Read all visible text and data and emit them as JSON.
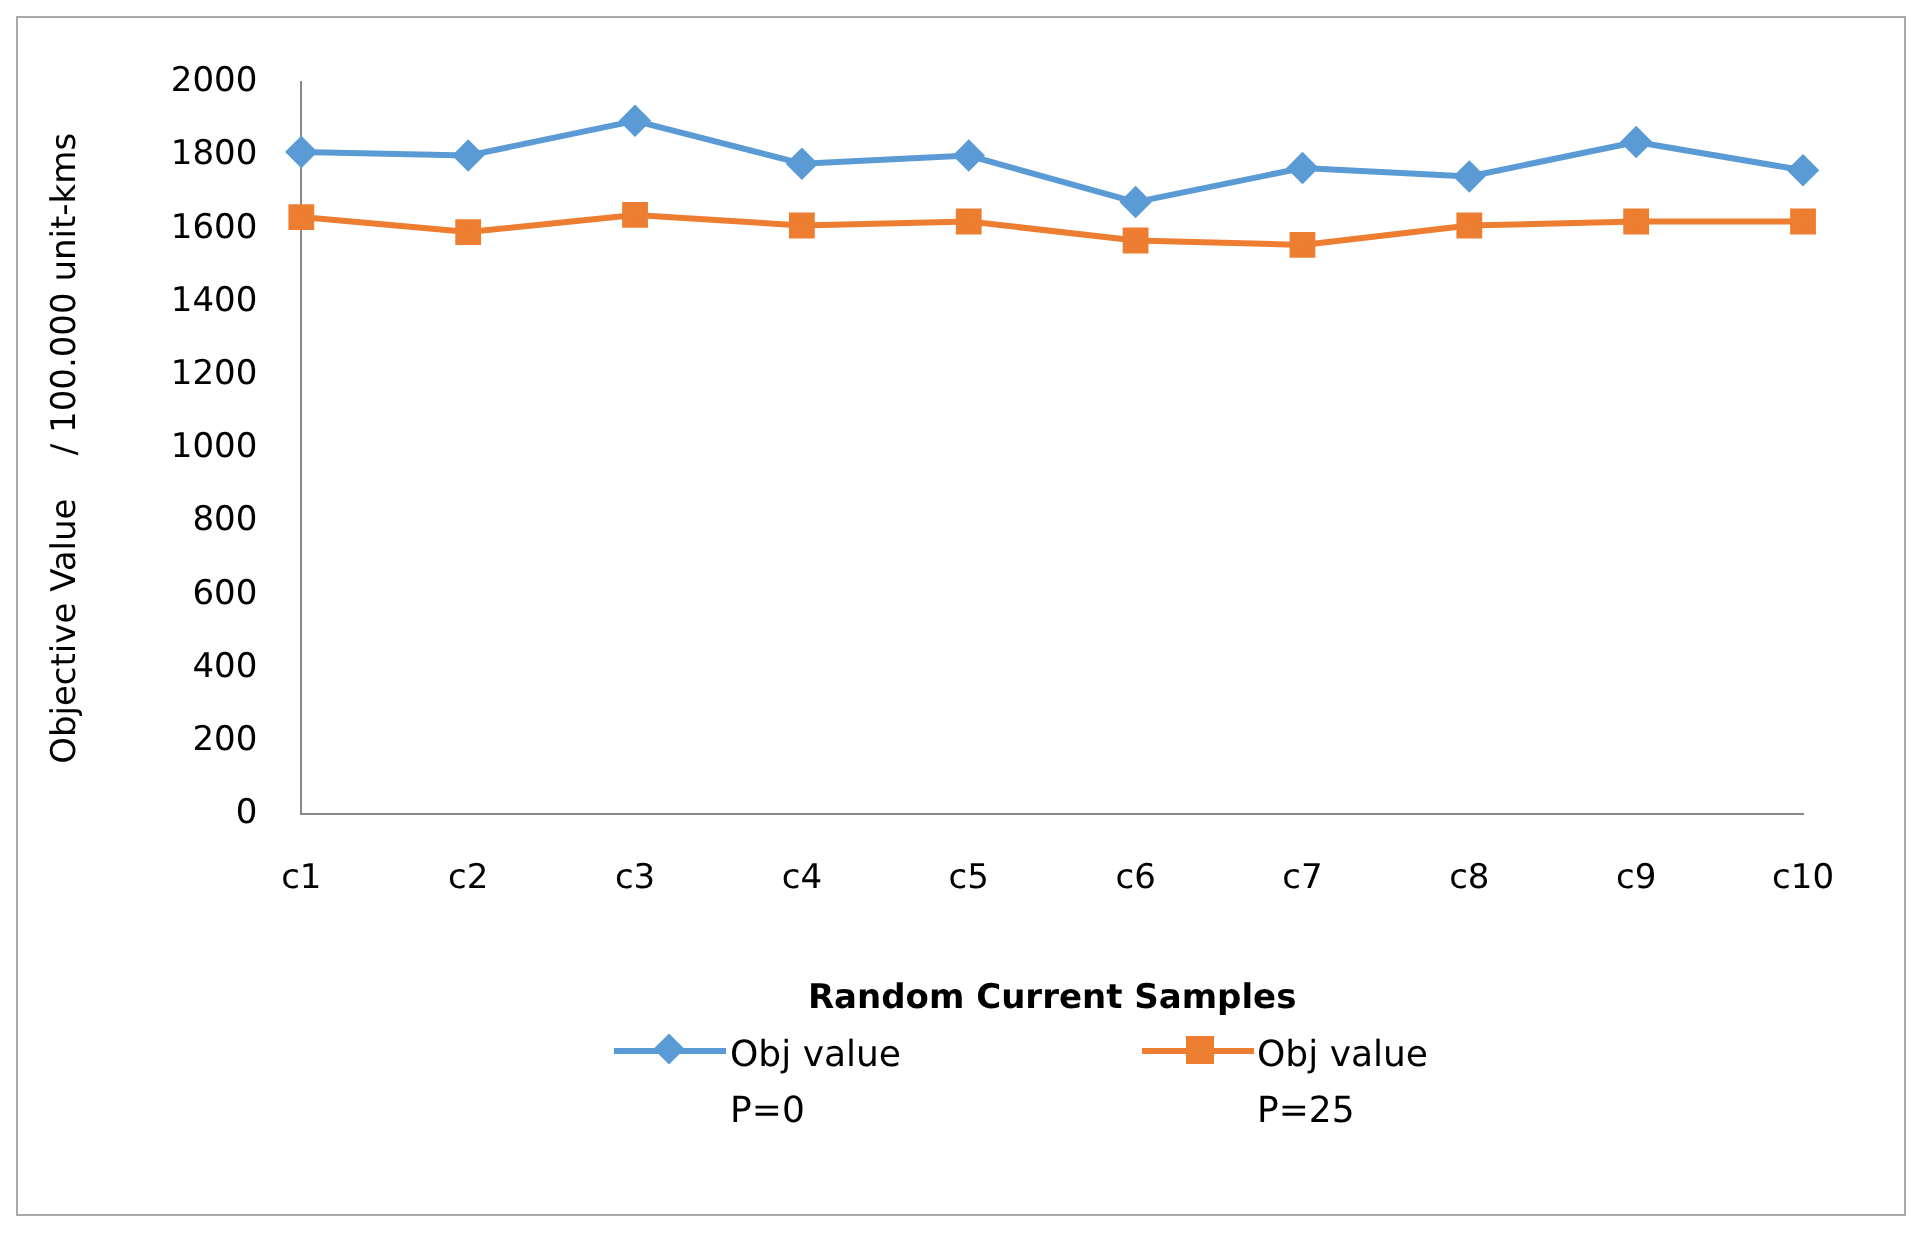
{
  "chart_data": {
    "type": "line",
    "xlabel": "Random Current Samples",
    "ylabel": "Objective Value    / 100.000 unit-kms",
    "categories": [
      "c1",
      "c2",
      "c3",
      "c4",
      "c5",
      "c6",
      "c7",
      "c8",
      "c9",
      "c10"
    ],
    "series": [
      {
        "name": "Obj value\nP=0",
        "color": "#5b9bd5",
        "marker": "diamond",
        "values": [
          1810,
          1800,
          1895,
          1778,
          1800,
          1673,
          1766,
          1743,
          1837,
          1760
        ]
      },
      {
        "name": "Obj value\nP=25",
        "color": "#ed7d31",
        "marker": "square",
        "values": [
          1632,
          1591,
          1638,
          1609,
          1620,
          1568,
          1556,
          1609,
          1620,
          1620
        ]
      }
    ],
    "ylim": [
      0,
      2000
    ],
    "yticks": [
      0,
      200,
      400,
      600,
      800,
      1000,
      1200,
      1400,
      1600,
      1800,
      2000
    ],
    "grid": false,
    "legend": "bottom"
  }
}
